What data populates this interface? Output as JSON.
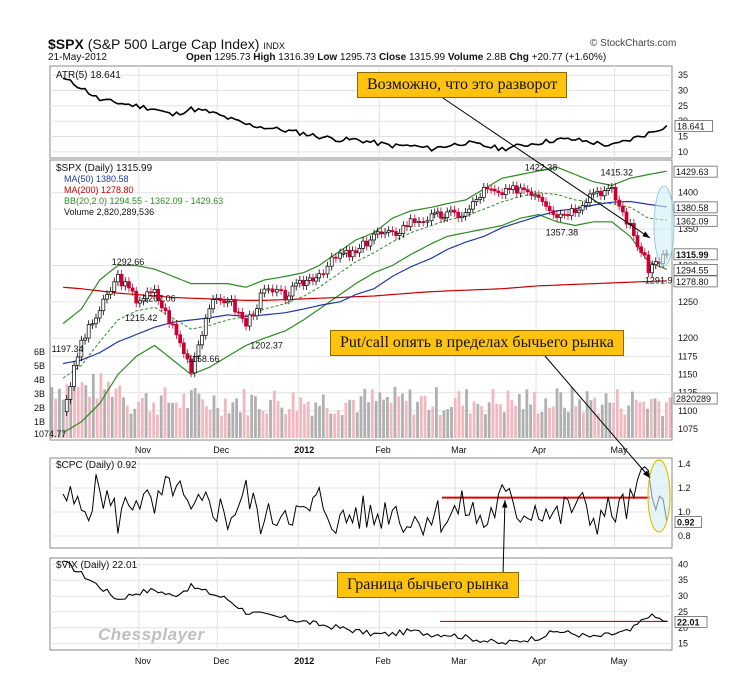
{
  "header": {
    "symbol": "$SPX",
    "name": "(S&P 500 Large Cap Index)",
    "exchange": "INDX",
    "date": "21-May-2012",
    "watermark": "© StockCharts.com",
    "open_label": "Open",
    "open": "1295.73",
    "high_label": "High",
    "high": "1316.39",
    "low_label": "Low",
    "low": "1295.73",
    "close_label": "Close",
    "close": "1315.99",
    "volume_label": "Volume",
    "volume": "2.8B",
    "chg_label": "Chg",
    "chg": "+20.77 (+1.60%)"
  },
  "annotations": [
    {
      "text": "Возможно, что это разворот"
    },
    {
      "text": "Put/call опять в пределах бычьего рынка"
    },
    {
      "text": "Граница бычьего рынка"
    }
  ],
  "logo_text": "Chessplayer",
  "colors": {
    "price_up": "#000000",
    "price_down": "#cc0033",
    "ma50": "#1f3b9c",
    "ma200": "#cc0000",
    "bb": "#2e8b22",
    "vol_up": "#b0b0b0",
    "vol_down": "#f2b8c0",
    "annot_fill": "#ffc20e",
    "red_line": "#dd0000",
    "highlight": "#d0ecf6"
  },
  "chart_data": [
    {
      "type": "line",
      "panel": "ATR",
      "legend": "ATR(5) 18.641",
      "last_value": "18.641",
      "ylim": [
        8,
        38
      ],
      "yticks": [
        "35",
        "30",
        "25",
        "20",
        "15",
        "10"
      ],
      "x": [
        "2011-10-03",
        "2011-10-10",
        "2011-10-17",
        "2011-10-24",
        "2011-10-31",
        "2011-11-07",
        "2011-11-14",
        "2011-11-21",
        "2011-11-28",
        "2011-12-05",
        "2011-12-12",
        "2011-12-19",
        "2011-12-27",
        "2012-01-03",
        "2012-01-09",
        "2012-01-17",
        "2012-01-23",
        "2012-01-30",
        "2012-02-06",
        "2012-02-13",
        "2012-02-21",
        "2012-02-27",
        "2012-03-05",
        "2012-03-12",
        "2012-03-19",
        "2012-03-26",
        "2012-04-02",
        "2012-04-09",
        "2012-04-16",
        "2012-04-23",
        "2012-04-30",
        "2012-05-07",
        "2012-05-14",
        "2012-05-21"
      ],
      "values": [
        34,
        31,
        27,
        26,
        25,
        24,
        22,
        24,
        23,
        21,
        19,
        18,
        17,
        16,
        15,
        14,
        14,
        13,
        12,
        12,
        11,
        12,
        13,
        12,
        11,
        12,
        13,
        14,
        14,
        13,
        12,
        14,
        16,
        18.6
      ]
    },
    {
      "type": "line",
      "panel": "SPX",
      "legend": "$SPX (Daily) 1315.99",
      "ma50_legend": "MA(50) 1380.58",
      "ma200_legend": "MA(200) 1278.80",
      "bb_legend": "BB(20,2.0) 1294.55 - 1362.09 - 1429.63",
      "volume_legend": "Volume 2,820,289,536",
      "ylim": [
        1060,
        1445
      ],
      "yticks": [
        "1400",
        "1350",
        "1300",
        "1250",
        "1200",
        "1175",
        "1150",
        "1125",
        "1100",
        "1075"
      ],
      "right_labels": [
        "1429.63",
        "1380.58",
        "1362.09",
        "1315.99",
        "1294.55",
        "1278.80"
      ],
      "peak_labels": [
        {
          "text": "1292.66",
          "x": "2011-10-27",
          "y": 1292.66
        },
        {
          "text": "1197.34",
          "x": "2011-10-04",
          "y": 1197.34
        },
        {
          "text": "1215.42",
          "x": "2011-11-01",
          "y": 1215.42
        },
        {
          "text": "1267.06",
          "x": "2011-11-08",
          "y": 1267.06
        },
        {
          "text": "1158.66",
          "x": "2011-11-25",
          "y": 1158.66
        },
        {
          "text": "1202.37",
          "x": "2011-12-19",
          "y": 1202.37
        },
        {
          "text": "1422.38",
          "x": "2012-04-02",
          "y": 1422.38
        },
        {
          "text": "1357.38",
          "x": "2012-04-10",
          "y": 1357.38
        },
        {
          "text": "1415.32",
          "x": "2012-05-01",
          "y": 1415.32
        },
        {
          "text": "1291.9",
          "x": "2012-05-18",
          "y": 1291.9
        }
      ],
      "volume_yticks": [
        "6B",
        "5B",
        "4B",
        "3B",
        "2B",
        "1B"
      ],
      "volume_label": "2820289",
      "low_label": "1074.77",
      "x": [
        "2011-10-03",
        "2011-10-10",
        "2011-10-17",
        "2011-10-24",
        "2011-10-31",
        "2011-11-07",
        "2011-11-14",
        "2011-11-21",
        "2011-11-28",
        "2011-12-05",
        "2011-12-12",
        "2011-12-19",
        "2011-12-27",
        "2012-01-03",
        "2012-01-09",
        "2012-01-17",
        "2012-01-23",
        "2012-01-30",
        "2012-02-06",
        "2012-02-13",
        "2012-02-21",
        "2012-02-27",
        "2012-03-05",
        "2012-03-12",
        "2012-03-19",
        "2012-03-26",
        "2012-04-02",
        "2012-04-09",
        "2012-04-16",
        "2012-04-23",
        "2012-04-30",
        "2012-05-07",
        "2012-05-14",
        "2012-05-21"
      ],
      "series": [
        {
          "name": "$SPX",
          "values": [
            1099,
            1195,
            1238,
            1285,
            1253,
            1263,
            1216,
            1159,
            1245,
            1255,
            1219,
            1265,
            1258,
            1277,
            1290,
            1315,
            1316,
            1344,
            1342,
            1361,
            1366,
            1370,
            1371,
            1404,
            1397,
            1408,
            1398,
            1370,
            1378,
            1403,
            1402,
            1353,
            1296,
            1316
          ]
        },
        {
          "name": "MA(50)",
          "values": [
            1165,
            1170,
            1180,
            1195,
            1205,
            1215,
            1222,
            1225,
            1228,
            1232,
            1230,
            1232,
            1235,
            1240,
            1245,
            1250,
            1260,
            1268,
            1285,
            1298,
            1310,
            1322,
            1332,
            1340,
            1352,
            1360,
            1368,
            1375,
            1378,
            1383,
            1387,
            1388,
            1384,
            1380.58
          ]
        },
        {
          "name": "MA(200)",
          "values": [
            1270,
            1268,
            1265,
            1262,
            1260,
            1258,
            1256,
            1255,
            1254,
            1253,
            1252,
            1252,
            1253,
            1254,
            1255,
            1256,
            1257,
            1258,
            1260,
            1262,
            1264,
            1265,
            1266,
            1267,
            1268,
            1270,
            1272,
            1273,
            1274,
            1275,
            1276,
            1277,
            1278,
            1278.8
          ]
        },
        {
          "name": "BB upper",
          "values": [
            1220,
            1240,
            1280,
            1300,
            1300,
            1295,
            1285,
            1275,
            1275,
            1275,
            1270,
            1280,
            1285,
            1290,
            1300,
            1320,
            1335,
            1345,
            1365,
            1375,
            1380,
            1385,
            1390,
            1405,
            1420,
            1425,
            1430,
            1435,
            1425,
            1415,
            1410,
            1420,
            1425,
            1429.63
          ]
        },
        {
          "name": "BB lower",
          "values": [
            1070,
            1085,
            1110,
            1150,
            1175,
            1190,
            1170,
            1150,
            1160,
            1175,
            1190,
            1200,
            1210,
            1225,
            1240,
            1260,
            1275,
            1290,
            1300,
            1315,
            1330,
            1340,
            1345,
            1350,
            1355,
            1365,
            1370,
            1360,
            1355,
            1360,
            1360,
            1340,
            1305,
            1294.55
          ]
        }
      ]
    },
    {
      "type": "line",
      "panel": "CPC",
      "legend": "$CPC (Daily) 0.92",
      "last_value": "0.92",
      "ylim": [
        0.7,
        1.45
      ],
      "yticks": [
        "1.4",
        "1.2",
        "1.0",
        "0.8"
      ],
      "reference_line": 1.12,
      "x": [
        "2011-10-03",
        "2011-10-10",
        "2011-10-17",
        "2011-10-24",
        "2011-10-31",
        "2011-11-07",
        "2011-11-14",
        "2011-11-21",
        "2011-11-28",
        "2011-12-05",
        "2011-12-12",
        "2011-12-19",
        "2011-12-27",
        "2012-01-03",
        "2012-01-09",
        "2012-01-17",
        "2012-01-23",
        "2012-01-30",
        "2012-02-06",
        "2012-02-13",
        "2012-02-21",
        "2012-02-27",
        "2012-03-05",
        "2012-03-12",
        "2012-03-19",
        "2012-03-26",
        "2012-04-02",
        "2012-04-09",
        "2012-04-16",
        "2012-04-23",
        "2012-04-30",
        "2012-05-07",
        "2012-05-14",
        "2012-05-21"
      ],
      "values": [
        1.15,
        1.0,
        1.2,
        0.95,
        1.15,
        1.0,
        1.25,
        0.95,
        1.1,
        0.95,
        1.15,
        0.9,
        1.05,
        0.95,
        1.1,
        0.9,
        1.0,
        0.95,
        1.05,
        0.9,
        1.0,
        0.95,
        1.05,
        0.9,
        1.12,
        1.0,
        1.05,
        0.95,
        1.08,
        0.95,
        1.0,
        1.05,
        1.35,
        0.92
      ]
    },
    {
      "type": "line",
      "panel": "VIX",
      "legend": "$VIX (Daily) 22.01",
      "last_value": "22.01",
      "ylim": [
        13,
        42
      ],
      "yticks": [
        "40",
        "35",
        "30",
        "25",
        "20",
        "15"
      ],
      "reference_line": 22,
      "x": [
        "2011-10-03",
        "2011-10-10",
        "2011-10-17",
        "2011-10-24",
        "2011-10-31",
        "2011-11-07",
        "2011-11-14",
        "2011-11-21",
        "2011-11-28",
        "2011-12-05",
        "2011-12-12",
        "2011-12-19",
        "2011-12-27",
        "2012-01-03",
        "2012-01-09",
        "2012-01-17",
        "2012-01-23",
        "2012-01-30",
        "2012-02-06",
        "2012-02-13",
        "2012-02-21",
        "2012-02-27",
        "2012-03-05",
        "2012-03-12",
        "2012-03-19",
        "2012-03-26",
        "2012-04-02",
        "2012-04-09",
        "2012-04-16",
        "2012-04-23",
        "2012-04-30",
        "2012-05-07",
        "2012-05-14",
        "2012-05-21"
      ],
      "values": [
        41,
        37,
        33,
        29,
        31,
        32,
        30,
        33,
        31,
        29,
        25,
        24,
        23,
        22,
        21,
        20,
        19,
        18,
        18,
        19,
        18,
        18,
        17,
        16,
        15,
        16,
        17,
        19,
        18,
        17,
        18,
        19,
        24,
        22.01
      ]
    },
    {
      "type": "line",
      "panel": "x-axis",
      "xticks": [
        "Nov",
        "Dec",
        "2012",
        "Feb",
        "Mar",
        "Apr",
        "May"
      ]
    }
  ]
}
